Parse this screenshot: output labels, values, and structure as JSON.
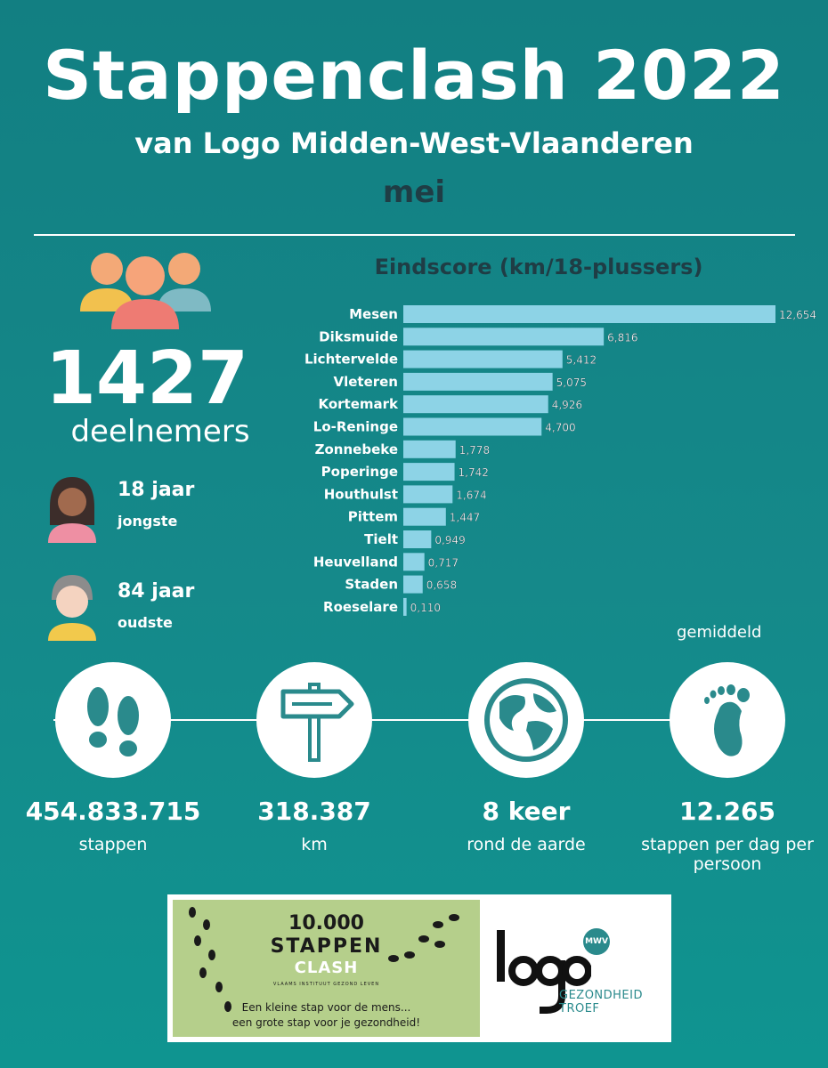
{
  "header": {
    "title": "Stappenclash 2022",
    "subtitle": "van Logo Midden-West-Vlaanderen",
    "month": "mei"
  },
  "participants": {
    "count": "1427",
    "label": "deelnemers",
    "youngest_value": "18 jaar",
    "youngest_label": "jongste",
    "oldest_value": "84 jaar",
    "oldest_label": "oudste"
  },
  "chart_data": {
    "type": "bar",
    "orientation": "horizontal",
    "title": "Eindscore (km/18-plussers)",
    "categories": [
      "Mesen",
      "Diksmuide",
      "Lichtervelde",
      "Vleteren",
      "Kortemark",
      "Lo-Reninge",
      "Zonnebeke",
      "Poperinge",
      "Houthulst",
      "Pittem",
      "Tielt",
      "Heuvelland",
      "Staden",
      "Roeselare"
    ],
    "values": [
      12.654,
      6.816,
      5.412,
      5.075,
      4.926,
      4.7,
      1.778,
      1.742,
      1.674,
      1.447,
      0.949,
      0.717,
      0.658,
      0.11
    ],
    "value_labels": [
      "12,654",
      "6,816",
      "5,412",
      "5,075",
      "4,926",
      "4,700",
      "1,778",
      "1,742",
      "1,674",
      "1,447",
      "0,949",
      "0,717",
      "0,658",
      "0,110"
    ],
    "xlim": [
      0,
      12.654
    ],
    "bar_color": "#8dd3e6",
    "note": "gemiddeld"
  },
  "stats": [
    {
      "value": "454.833.715",
      "label": "stappen",
      "icon": "footprints-icon"
    },
    {
      "value": "318.387",
      "label": "km",
      "icon": "signpost-icon"
    },
    {
      "value": "8 keer",
      "label": "rond de aarde",
      "icon": "globe-icon"
    },
    {
      "value": "12.265",
      "label": "stappen per dag per persoon",
      "icon": "foot-icon"
    }
  ],
  "campaign": {
    "line1": "10.000",
    "line2": "STAPPEN",
    "line3": "CLASH",
    "org": "VLAAMS INSTITUUT GEZOND LEVEN",
    "slogan1": "Een kleine stap voor de mens...",
    "slogan2": "een grote stap voor je gezondheid!"
  },
  "logo": {
    "badge": "MWV",
    "sub1": "GEZONDHEID",
    "sub2": "TROEF"
  },
  "colors": {
    "background": "#127f82",
    "dark_text": "#1f3d45",
    "bar": "#8dd3e6",
    "icon_teal": "#2a8a8c"
  }
}
